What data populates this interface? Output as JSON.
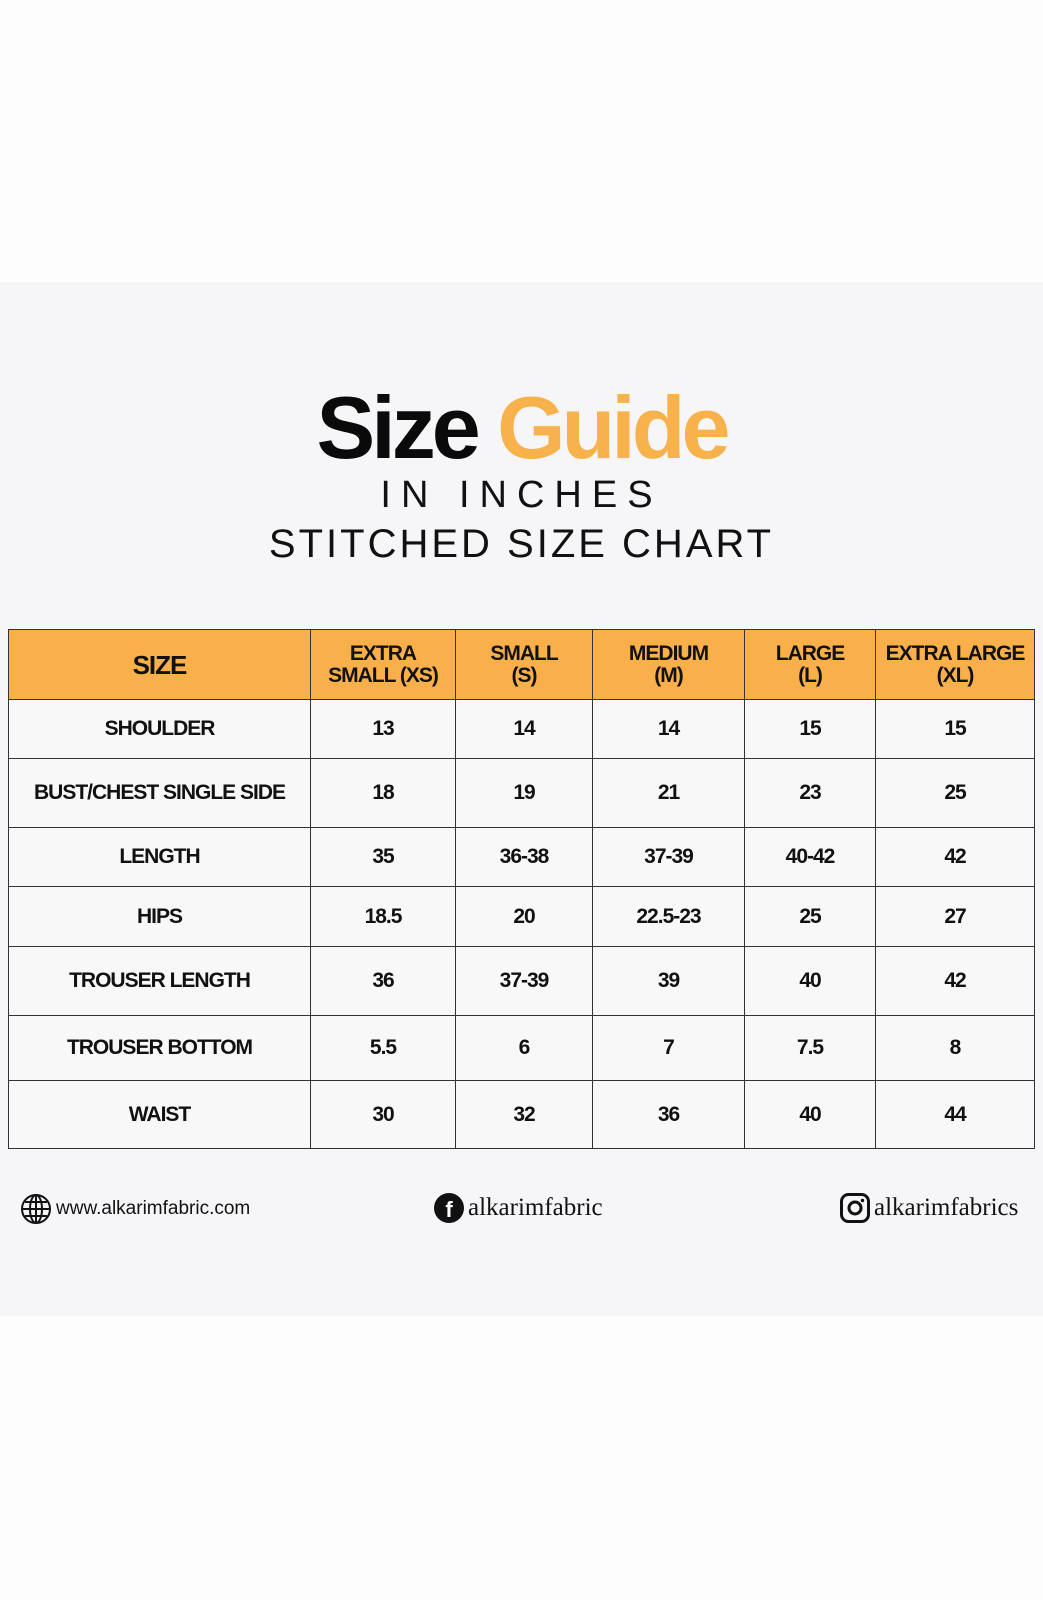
{
  "title": {
    "word1": "Size",
    "word2": "Guide"
  },
  "subtitle1": "IN INCHES",
  "subtitle2": "STITCHED SIZE CHART",
  "colors": {
    "accent": "#f9b04b",
    "header_bg": "#f9b04b",
    "panel_bg": "#f6f6f8"
  },
  "table": {
    "headers": [
      [
        "SIZE"
      ],
      [
        "EXTRA",
        "SMALL (XS)"
      ],
      [
        "SMALL",
        "(S)"
      ],
      [
        "MEDIUM",
        "(M)"
      ],
      [
        "LARGE",
        "(L)"
      ],
      [
        "EXTRA LARGE",
        "(XL)"
      ]
    ],
    "rows": [
      [
        "SHOULDER",
        "13",
        "14",
        "14",
        "15",
        "15"
      ],
      [
        "BUST/CHEST SINGLE SIDE",
        "18",
        "19",
        "21",
        "23",
        "25"
      ],
      [
        "LENGTH",
        "35",
        "36-38",
        "37-39",
        "40-42",
        "42"
      ],
      [
        "HIPS",
        "18.5",
        "20",
        "22.5-23",
        "25",
        "27"
      ],
      [
        "TROUSER LENGTH",
        "36",
        "37-39",
        "39",
        "40",
        "42"
      ],
      [
        "TROUSER BOTTOM",
        "5.5",
        "6",
        "7",
        "7.5",
        "8"
      ],
      [
        "WAIST",
        "30",
        "32",
        "36",
        "40",
        "44"
      ]
    ]
  },
  "footer": {
    "website": {
      "icon": "globe-icon",
      "text": "www.alkarimfabric.com"
    },
    "facebook": {
      "icon": "facebook-icon",
      "text": "alkarimfabric"
    },
    "instagram": {
      "icon": "instagram-icon",
      "text": "alkarimfabrics"
    }
  }
}
